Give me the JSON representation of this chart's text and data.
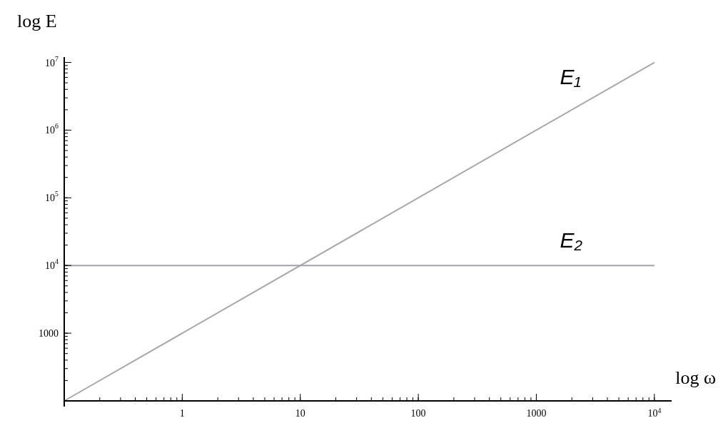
{
  "chart_data": {
    "type": "line",
    "xlabel": "log ω",
    "ylabel": "log E",
    "log": "xy",
    "xlim": [
      0.1,
      14000
    ],
    "ylim": [
      100,
      12000000
    ],
    "xticks": [
      1,
      10,
      100,
      1000,
      {
        "value": 10000,
        "label": "10$^{4}$"
      }
    ],
    "yticks": [
      1000,
      {
        "value": 10000,
        "label": "10$^{4}$"
      },
      {
        "value": 100000,
        "label": "10$^{5}$"
      },
      {
        "value": 1000000,
        "label": "10$^{6}$"
      },
      {
        "value": 10000000,
        "label": "10$^{7}$"
      }
    ],
    "x": [
      0.1,
      10000
    ],
    "series": [
      {
        "name": "E₁",
        "color": "#a8a8a8",
        "values": [
          100,
          10000000
        ]
      },
      {
        "name": "E₂",
        "color": "#a0a0b4",
        "values": [
          10000,
          10000
        ]
      }
    ]
  }
}
